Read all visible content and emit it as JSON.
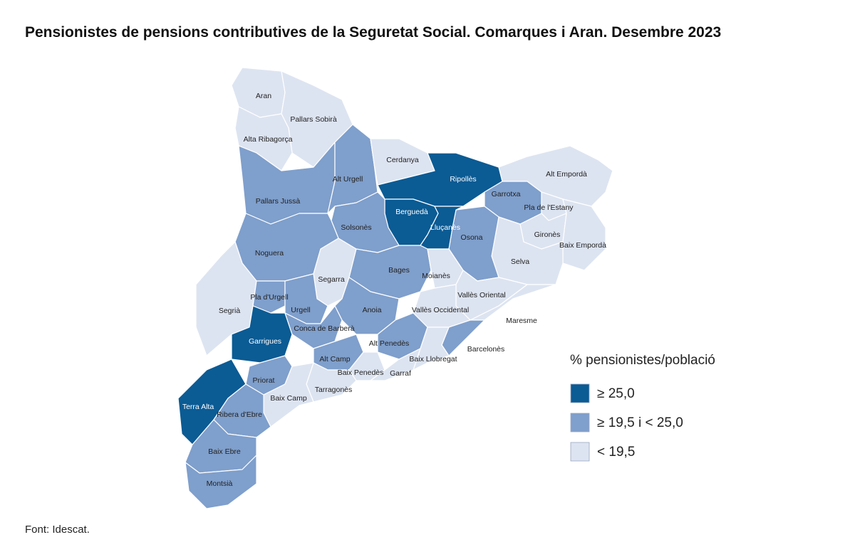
{
  "title": "Pensionistes de pensions contributives de la Seguretat Social. Comarques i Aran. Desembre 2023",
  "regions": [
    {
      "name": "Aran",
      "color": "#dde4f1"
    },
    {
      "name": "Pallars Sobirà",
      "color": "#dde4f1"
    },
    {
      "name": "Alta Ribagorça",
      "color": "#dde4f1"
    },
    {
      "name": "Pallars Jussà",
      "color": "#7f9fcc"
    },
    {
      "name": "Alt Urgell",
      "color": "#7f9fcc"
    },
    {
      "name": "Cerdanya",
      "color": "#dde4f1"
    },
    {
      "name": "Ripollès",
      "color": "#0b5b94"
    },
    {
      "name": "Alt Empordà",
      "color": "#dde4f1"
    },
    {
      "name": "Garrotxa",
      "color": "#7f9fcc"
    },
    {
      "name": "Pla de l'Estany",
      "color": "#dde4f1"
    },
    {
      "name": "Gironès",
      "color": "#dde4f1"
    },
    {
      "name": "Baix Empordà",
      "color": "#dde4f1"
    },
    {
      "name": "Selva",
      "color": "#dde4f1"
    },
    {
      "name": "Osona",
      "color": "#7f9fcc"
    },
    {
      "name": "Berguedà",
      "color": "#0b5b94"
    },
    {
      "name": "Lluçanès",
      "color": "#0b5b94"
    },
    {
      "name": "Solsonès",
      "color": "#7f9fcc"
    },
    {
      "name": "Noguera",
      "color": "#7f9fcc"
    },
    {
      "name": "Segrià",
      "color": "#dde4f1"
    },
    {
      "name": "Segarra",
      "color": "#dde4f1"
    },
    {
      "name": "Bages",
      "color": "#7f9fcc"
    },
    {
      "name": "Moianès",
      "color": "#dde4f1"
    },
    {
      "name": "Pla d'Urgell",
      "color": "#7f9fcc"
    },
    {
      "name": "Urgell",
      "color": "#7f9fcc"
    },
    {
      "name": "Anoia",
      "color": "#7f9fcc"
    },
    {
      "name": "Garrigues",
      "color": "#0b5b94"
    },
    {
      "name": "Conca de Barberà",
      "color": "#7f9fcc"
    },
    {
      "name": "Vallès Oriental",
      "color": "#dde4f1"
    },
    {
      "name": "Vallès Occidental",
      "color": "#dde4f1"
    },
    {
      "name": "Maresme",
      "color": "#dde4f1"
    },
    {
      "name": "Alt Penedès",
      "color": "#7f9fcc"
    },
    {
      "name": "Barcelonès",
      "color": "#7f9fcc"
    },
    {
      "name": "Baix Llobregat",
      "color": "#dde4f1"
    },
    {
      "name": "Alt Camp",
      "color": "#7f9fcc"
    },
    {
      "name": "Baix Penedès",
      "color": "#dde4f1"
    },
    {
      "name": "Garraf",
      "color": "#dde4f1"
    },
    {
      "name": "Tarragonès",
      "color": "#dde4f1"
    },
    {
      "name": "Priorat",
      "color": "#7f9fcc"
    },
    {
      "name": "Baix Camp",
      "color": "#dde4f1"
    },
    {
      "name": "Terra Alta",
      "color": "#0b5b94"
    },
    {
      "name": "Ribera d'Ebre",
      "color": "#7f9fcc"
    },
    {
      "name": "Baix Ebre",
      "color": "#7f9fcc"
    },
    {
      "name": "Montsià",
      "color": "#7f9fcc"
    }
  ],
  "legend": {
    "title": "% pensionistes/població",
    "items": [
      {
        "label": "≥ 25,0",
        "color": "#0b5b94"
      },
      {
        "label": "≥ 19,5 i < 25,0",
        "color": "#7f9fcc"
      },
      {
        "label": "< 19,5",
        "color": "#dde4f1"
      }
    ]
  },
  "source": "Font: Idescat."
}
